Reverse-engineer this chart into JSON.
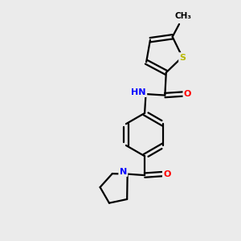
{
  "background_color": "#ebebeb",
  "atom_colors": {
    "S": "#b8b800",
    "N": "#0000ff",
    "O": "#ff0000",
    "C": "#000000"
  },
  "lw": 1.6,
  "fs": 8.0,
  "figsize": [
    3.0,
    3.0
  ],
  "dpi": 100
}
